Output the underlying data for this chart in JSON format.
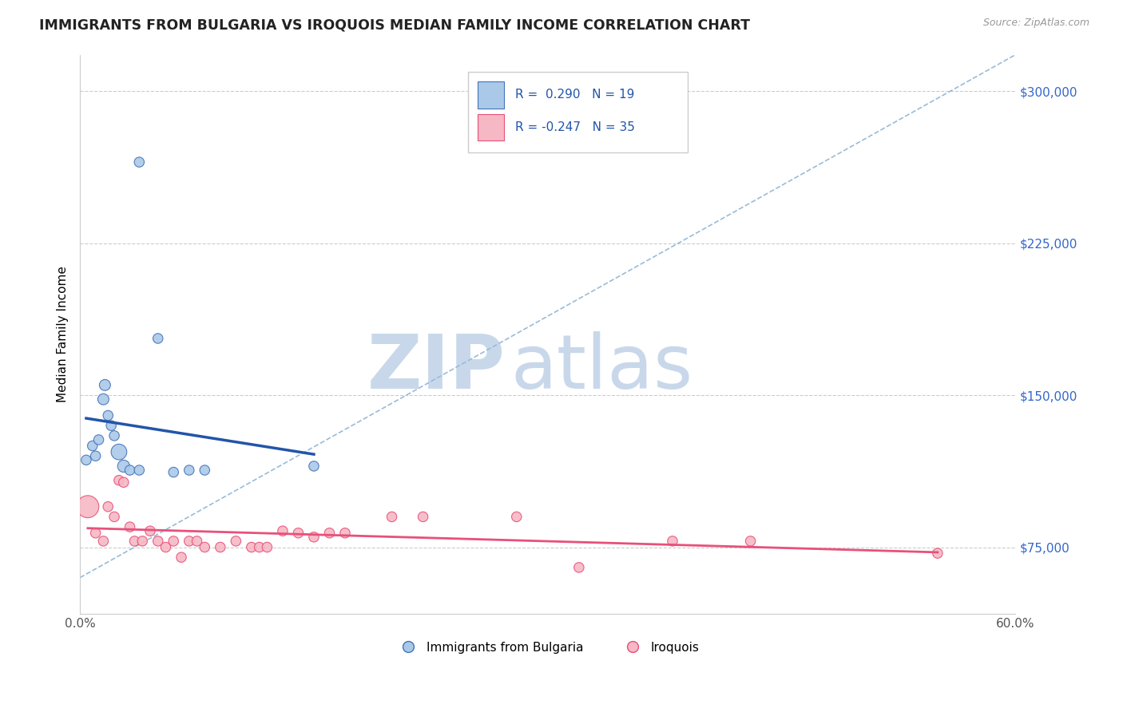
{
  "title": "IMMIGRANTS FROM BULGARIA VS IROQUOIS MEDIAN FAMILY INCOME CORRELATION CHART",
  "source_text": "Source: ZipAtlas.com",
  "ylabel": "Median Family Income",
  "x_min": 0.0,
  "x_max": 0.6,
  "y_min": 42000,
  "y_max": 318000,
  "y_ticks": [
    75000,
    150000,
    225000,
    300000
  ],
  "y_tick_labels": [
    "$75,000",
    "$150,000",
    "$225,000",
    "$300,000"
  ],
  "x_ticks": [
    0.0,
    0.1,
    0.2,
    0.3,
    0.4,
    0.5,
    0.6
  ],
  "x_tick_labels": [
    "0.0%",
    "",
    "",
    "",
    "",
    "",
    "60.0%"
  ],
  "legend_r_blue": "R =  0.290",
  "legend_n_blue": "N = 19",
  "legend_r_pink": "R = -0.247",
  "legend_n_pink": "N = 35",
  "blue_fill": "#aac9e8",
  "pink_fill": "#f5b8c4",
  "blue_edge": "#4472b8",
  "pink_edge": "#e8507a",
  "blue_line_color": "#2255aa",
  "pink_line_color": "#e8507a",
  "dash_line_color": "#99bbd9",
  "blue_scatter": [
    [
      0.004,
      118000
    ],
    [
      0.008,
      125000
    ],
    [
      0.01,
      120000
    ],
    [
      0.012,
      128000
    ],
    [
      0.015,
      148000
    ],
    [
      0.016,
      155000
    ],
    [
      0.018,
      140000
    ],
    [
      0.02,
      135000
    ],
    [
      0.022,
      130000
    ],
    [
      0.025,
      122000
    ],
    [
      0.028,
      115000
    ],
    [
      0.032,
      113000
    ],
    [
      0.038,
      113000
    ],
    [
      0.05,
      178000
    ],
    [
      0.06,
      112000
    ],
    [
      0.07,
      113000
    ],
    [
      0.08,
      113000
    ],
    [
      0.15,
      115000
    ],
    [
      0.038,
      265000
    ]
  ],
  "pink_scatter": [
    [
      0.005,
      95000
    ],
    [
      0.01,
      82000
    ],
    [
      0.015,
      78000
    ],
    [
      0.018,
      95000
    ],
    [
      0.022,
      90000
    ],
    [
      0.025,
      108000
    ],
    [
      0.028,
      107000
    ],
    [
      0.032,
      85000
    ],
    [
      0.035,
      78000
    ],
    [
      0.04,
      78000
    ],
    [
      0.045,
      83000
    ],
    [
      0.05,
      78000
    ],
    [
      0.055,
      75000
    ],
    [
      0.06,
      78000
    ],
    [
      0.065,
      70000
    ],
    [
      0.07,
      78000
    ],
    [
      0.075,
      78000
    ],
    [
      0.08,
      75000
    ],
    [
      0.09,
      75000
    ],
    [
      0.1,
      78000
    ],
    [
      0.11,
      75000
    ],
    [
      0.115,
      75000
    ],
    [
      0.12,
      75000
    ],
    [
      0.13,
      83000
    ],
    [
      0.14,
      82000
    ],
    [
      0.15,
      80000
    ],
    [
      0.16,
      82000
    ],
    [
      0.17,
      82000
    ],
    [
      0.2,
      90000
    ],
    [
      0.22,
      90000
    ],
    [
      0.28,
      90000
    ],
    [
      0.32,
      65000
    ],
    [
      0.38,
      78000
    ],
    [
      0.43,
      78000
    ],
    [
      0.55,
      72000
    ]
  ],
  "blue_scatter_sizes": [
    80,
    80,
    80,
    80,
    100,
    100,
    80,
    80,
    80,
    200,
    120,
    80,
    80,
    80,
    80,
    80,
    80,
    80,
    80
  ],
  "pink_scatter_sizes": [
    400,
    80,
    80,
    80,
    80,
    80,
    80,
    80,
    80,
    80,
    80,
    80,
    80,
    80,
    80,
    80,
    80,
    80,
    80,
    80,
    80,
    80,
    80,
    80,
    80,
    80,
    80,
    80,
    80,
    80,
    80,
    80,
    80,
    80,
    80
  ],
  "watermark_zip": "ZIP",
  "watermark_atlas": "atlas",
  "watermark_color": "#c8d8ea",
  "background_color": "#ffffff",
  "grid_color": "#cccccc",
  "tick_color": "#555555",
  "ytick_color": "#3366cc"
}
